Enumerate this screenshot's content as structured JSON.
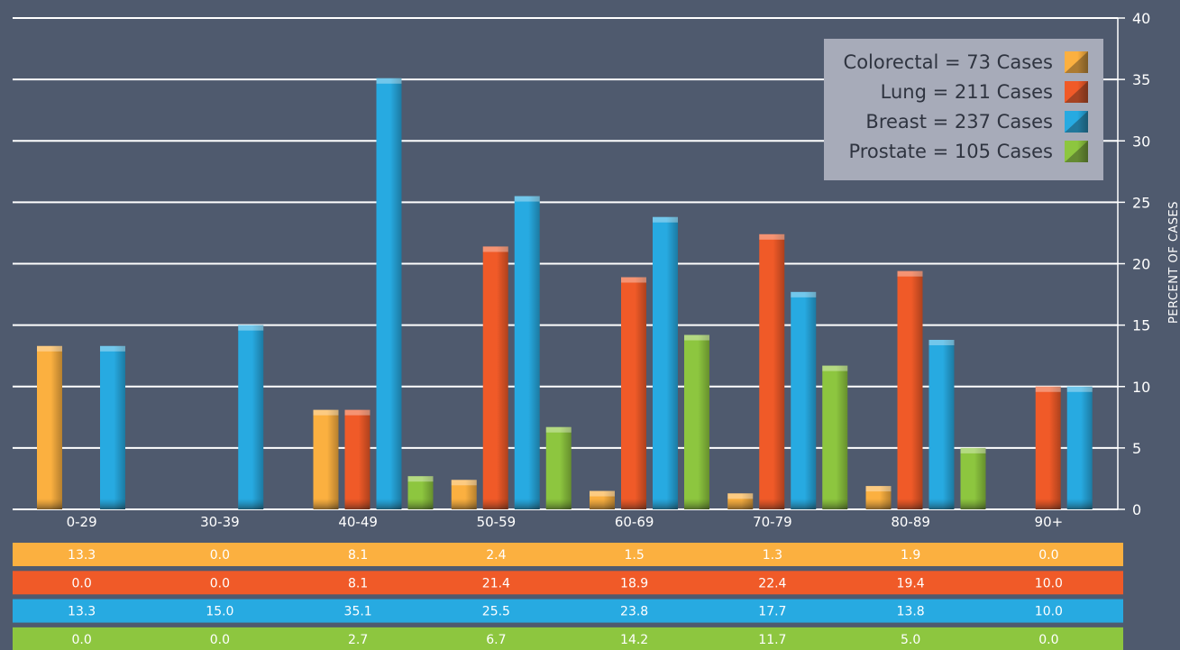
{
  "chart_data": {
    "type": "bar",
    "ylabel": "PERCENT OF CASES",
    "ylim": [
      0,
      40
    ],
    "yticks": [
      0,
      5,
      10,
      15,
      20,
      25,
      30,
      35,
      40
    ],
    "y_axis_side": "right",
    "grid": true,
    "legend_position": "top-right",
    "categories": [
      "0-29",
      "30-39",
      "40-49",
      "50-59",
      "60-69",
      "70-79",
      "80-89",
      "90+"
    ],
    "series": [
      {
        "name": "Colorectal = 73 Cases",
        "color": "#fbb040",
        "values": [
          13.3,
          0.0,
          8.1,
          2.4,
          1.5,
          1.3,
          1.9,
          0.0
        ]
      },
      {
        "name": "Lung = 211 Cases",
        "color": "#f05a28",
        "values": [
          0.0,
          0.0,
          8.1,
          21.4,
          18.9,
          22.4,
          19.4,
          10.0
        ]
      },
      {
        "name": "Breast = 237 Cases",
        "color": "#27aae1",
        "values": [
          13.3,
          15.0,
          35.1,
          25.5,
          23.8,
          17.7,
          13.8,
          10.0
        ]
      },
      {
        "name": "Prostate = 105 Cases",
        "color": "#8dc63f",
        "values": [
          0.0,
          0.0,
          2.7,
          6.7,
          14.2,
          11.7,
          5.0,
          0.0
        ]
      }
    ],
    "table_values": [
      [
        "13.3",
        "0.0",
        "8.1",
        "2.4",
        "1.5",
        "1.3",
        "1.9",
        "0.0"
      ],
      [
        "0.0",
        "0.0",
        "8.1",
        "21.4",
        "18.9",
        "22.4",
        "19.4",
        "10.0"
      ],
      [
        "13.3",
        "15.0",
        "35.1",
        "25.5",
        "23.8",
        "17.7",
        "13.8",
        "10.0"
      ],
      [
        "0.0",
        "0.0",
        "2.7",
        "6.7",
        "14.2",
        "11.7",
        "5.0",
        "0.0"
      ]
    ]
  }
}
